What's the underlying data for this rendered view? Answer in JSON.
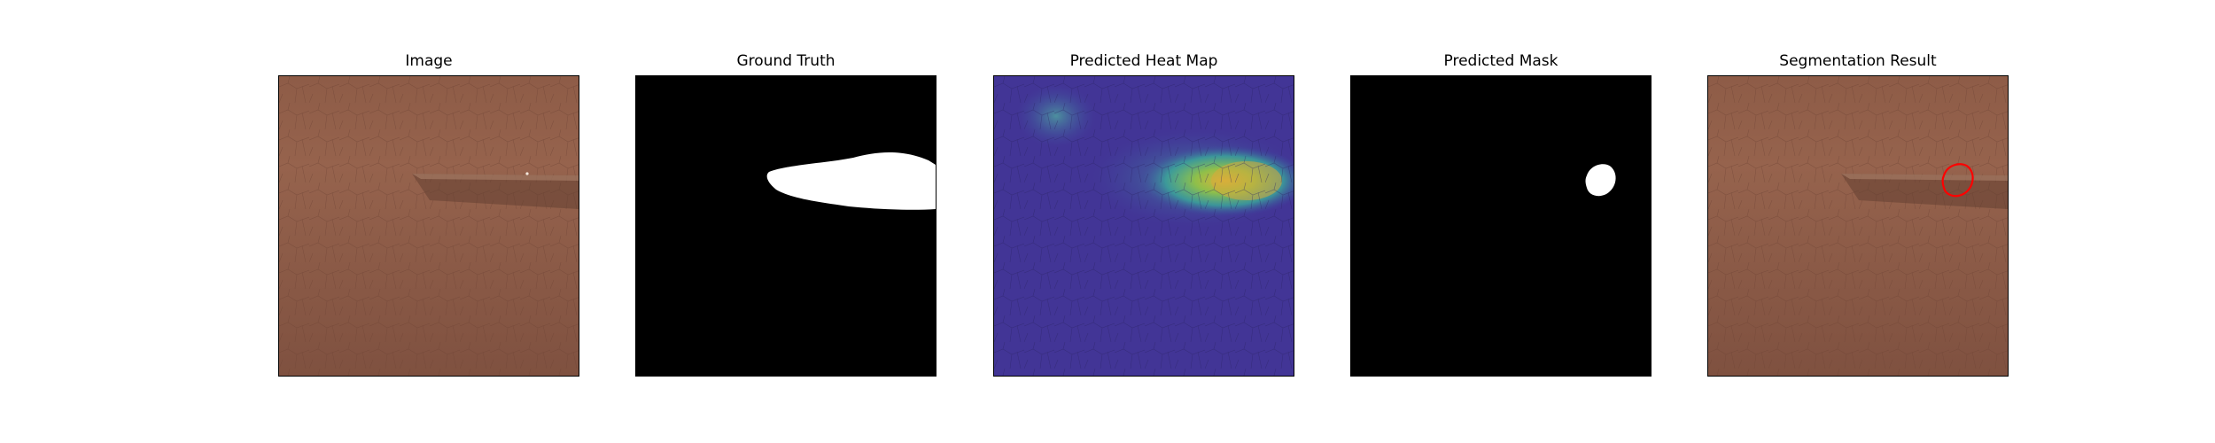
{
  "panels": [
    {
      "title": "Image"
    },
    {
      "title": "Ground Truth"
    },
    {
      "title": "Predicted Heat Map"
    },
    {
      "title": "Predicted Mask"
    },
    {
      "title": "Segmentation Result"
    }
  ],
  "colors": {
    "leather": "#8a5a45",
    "mask_background": "#000000",
    "mask_foreground": "#ffffff",
    "heatmap_low": "#3b2f8c",
    "heatmap_high": "#d9b43a",
    "contour": "#ff0000",
    "frame": "#000000"
  }
}
